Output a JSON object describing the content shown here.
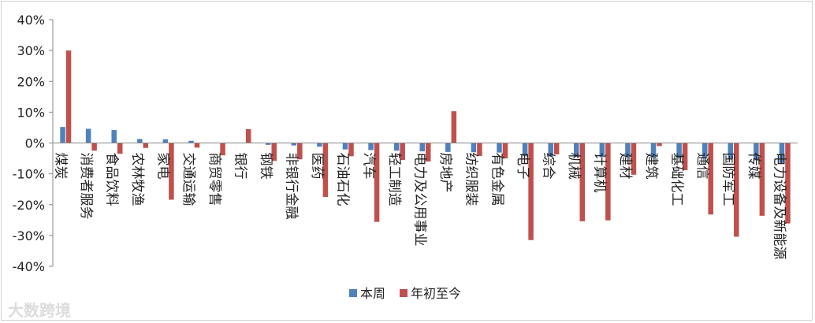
{
  "chart_data": {
    "type": "bar",
    "categories": [
      "煤炭",
      "消费者服务",
      "食品饮料",
      "农林牧渔",
      "家电",
      "交通运输",
      "商贸零售",
      "银行",
      "钢铁",
      "非银行金融",
      "医药",
      "石油石化",
      "汽车",
      "轻工制造",
      "电力及公用事业",
      "房地产",
      "纺织服装",
      "有色金属",
      "电子",
      "综合",
      "机械",
      "计算机",
      "建材",
      "建筑",
      "基础化工",
      "通信",
      "国防军工",
      "传媒",
      "电力设备及新能源"
    ],
    "series": [
      {
        "name": "本周",
        "color": "#4F81BD",
        "values": [
          5.2,
          4.6,
          4.2,
          1.3,
          1.2,
          0.7,
          0.1,
          0.0,
          -0.6,
          -0.8,
          -1.2,
          -2.1,
          -2.3,
          -2.5,
          -2.7,
          -2.9,
          -3.0,
          -3.1,
          -4.3,
          -4.4,
          -4.5,
          -4.6,
          -4.7,
          -4.8,
          -4.9,
          -5.0,
          -5.3,
          -5.6,
          -6.4
        ]
      },
      {
        "name": "年初至今",
        "color": "#C0504D",
        "values": [
          30.0,
          -2.5,
          -3.5,
          -1.6,
          -18.4,
          -1.5,
          -4.0,
          4.5,
          -5.8,
          -5.3,
          -17.5,
          -4.3,
          -25.6,
          -5.5,
          -6.0,
          10.3,
          -4.2,
          -5.0,
          -31.5,
          -3.7,
          -25.4,
          -25.1,
          -10.3,
          -1.0,
          -8.8,
          -23.2,
          -30.4,
          -23.6,
          -26.1
        ]
      }
    ],
    "ylim": [
      -40,
      40
    ],
    "yticks": [
      "-40%",
      "-30%",
      "-20%",
      "-10%",
      "0%",
      "10%",
      "20%",
      "30%",
      "40%"
    ],
    "legend_position": "bottom",
    "grid": false
  },
  "watermark": "大数跨境"
}
